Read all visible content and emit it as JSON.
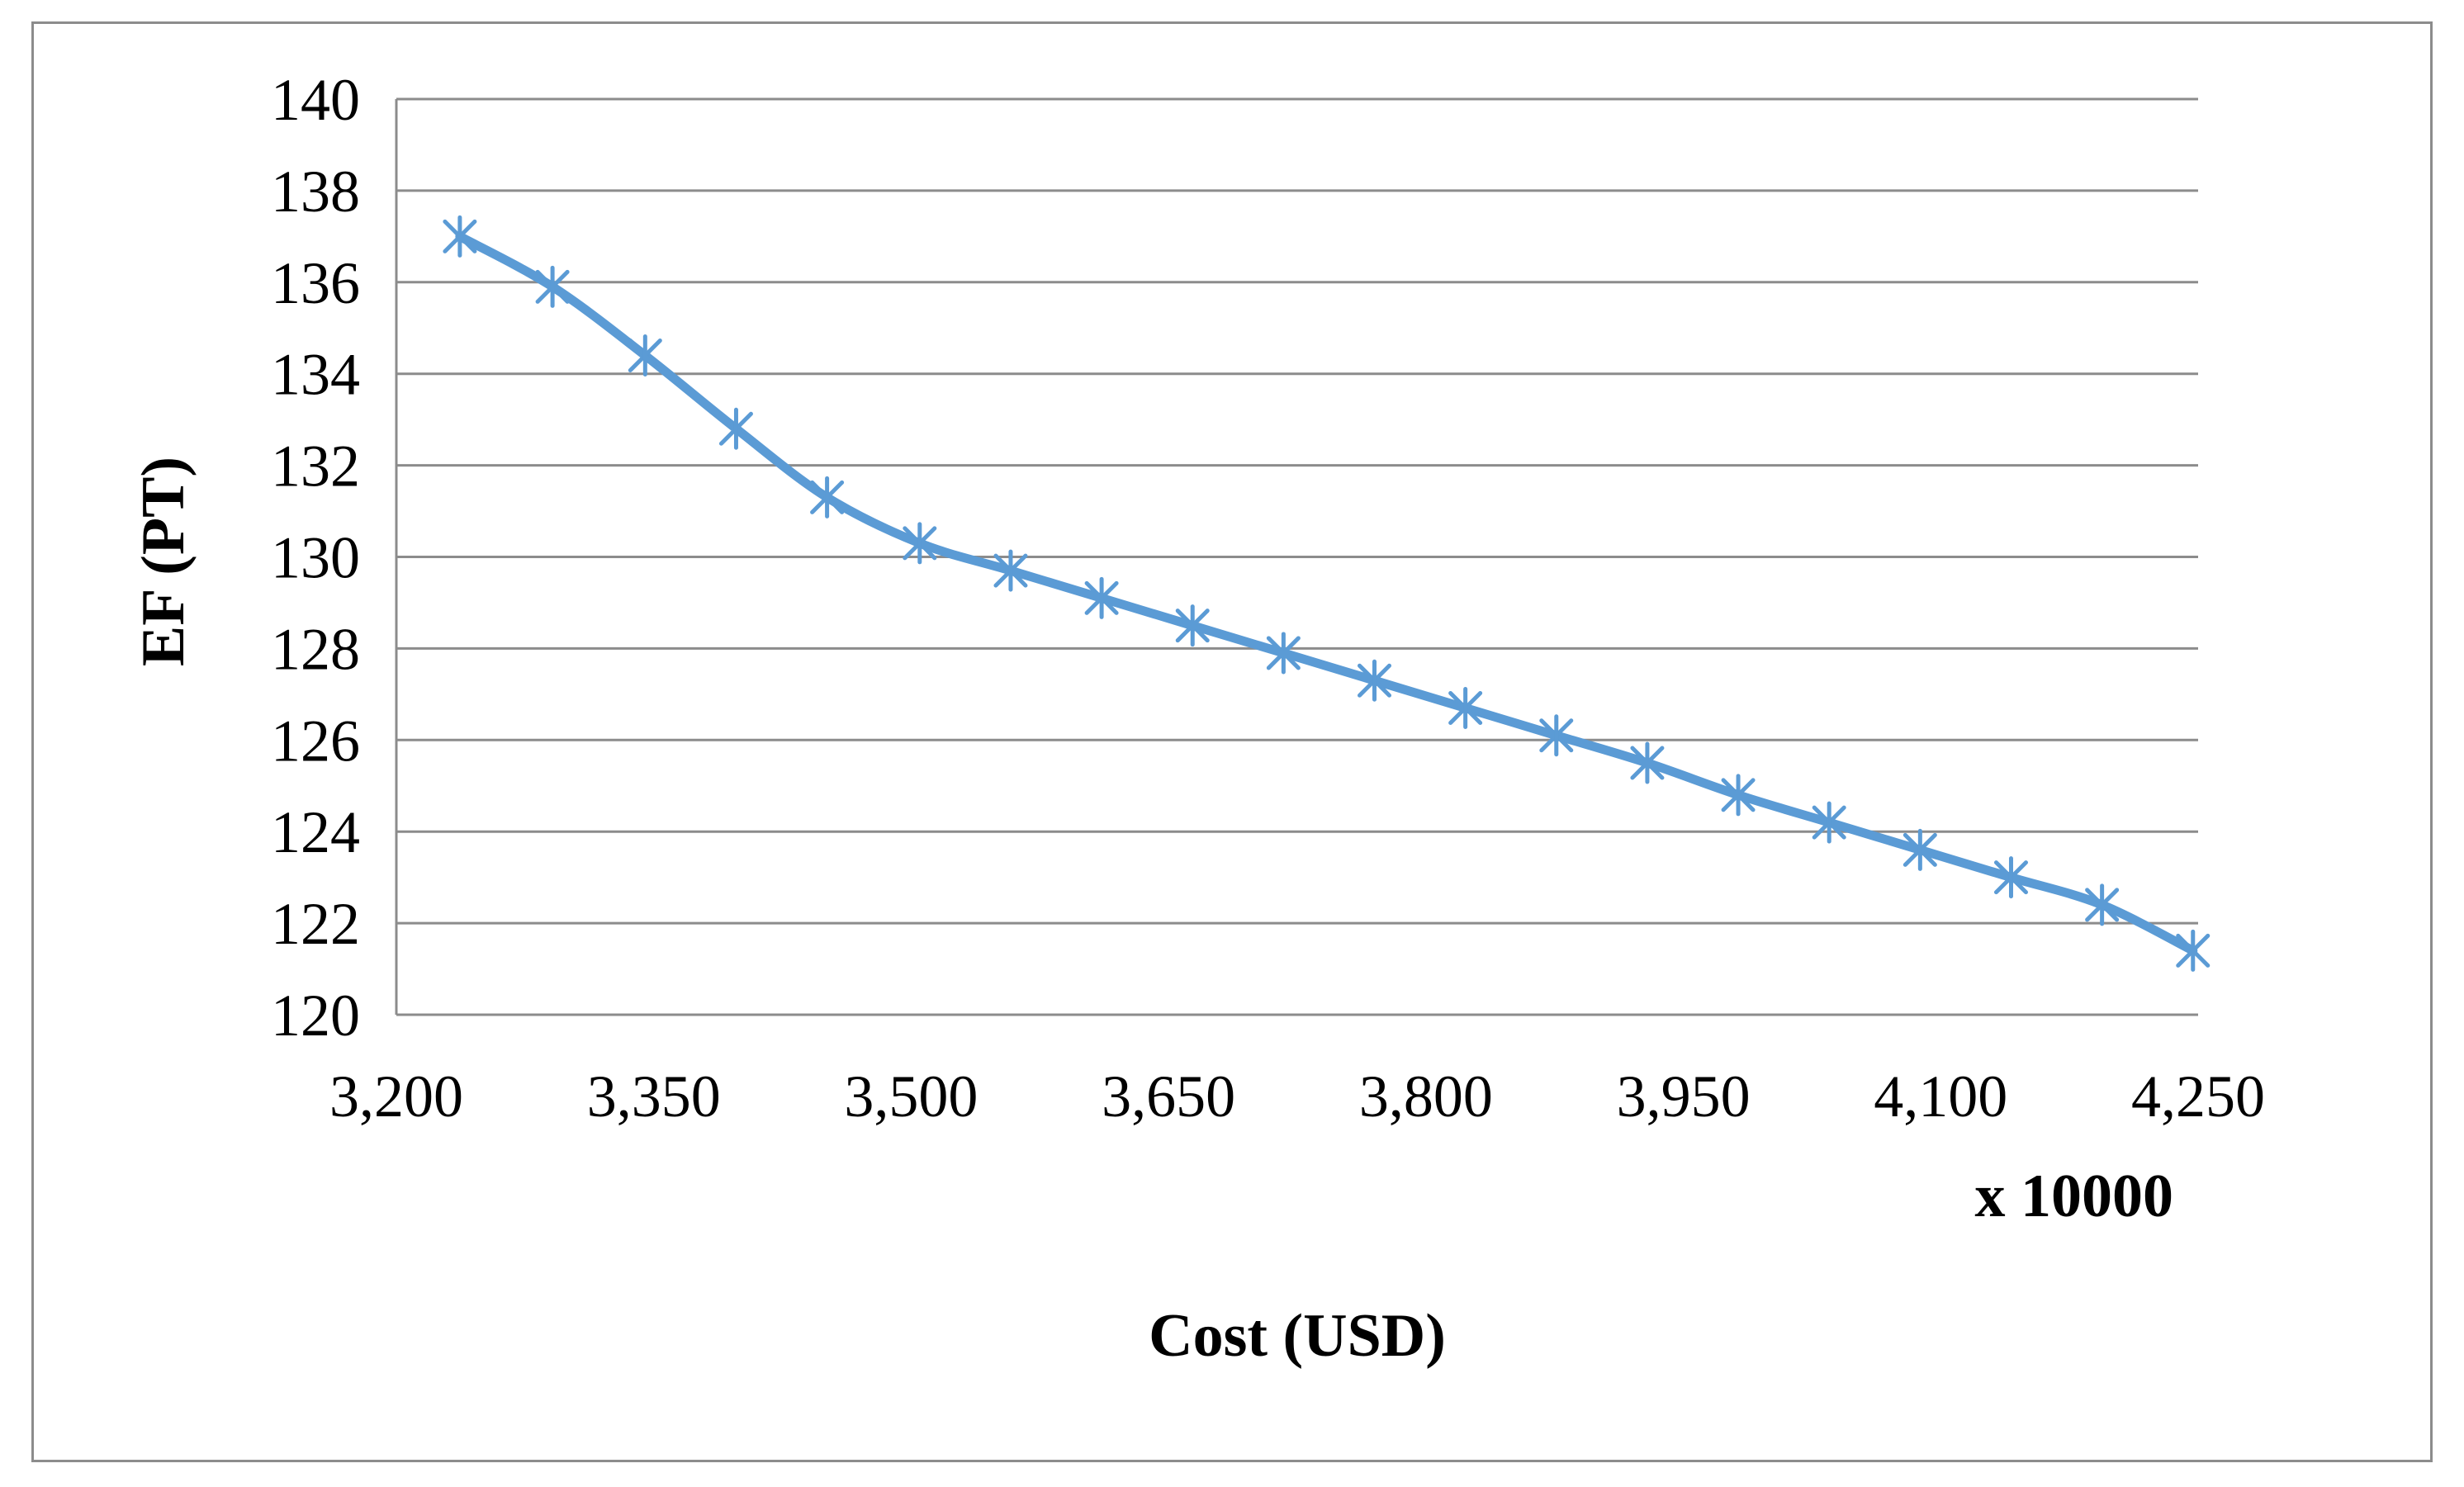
{
  "chart_data": {
    "type": "line",
    "title": "",
    "xlabel": "Cost (USD)",
    "x_multiplier_label": "x 10000",
    "ylabel": "EF (PT)",
    "xlim": [
      3200,
      4250
    ],
    "ylim": [
      120,
      140
    ],
    "x_ticks": [
      3200,
      3350,
      3500,
      3650,
      3800,
      3950,
      4100,
      4250
    ],
    "x_tick_labels": [
      "3,200",
      "3,350",
      "3,500",
      "3,650",
      "3,800",
      "3,950",
      "4,100",
      "4,250"
    ],
    "y_ticks": [
      120,
      122,
      124,
      126,
      128,
      130,
      132,
      134,
      136,
      138,
      140
    ],
    "y_tick_labels": [
      "120",
      "122",
      "124",
      "126",
      "128",
      "130",
      "132",
      "134",
      "136",
      "138",
      "140"
    ],
    "grid": true,
    "legend": "none",
    "marker": "asterisk",
    "series": [
      {
        "color": "#5b9bd5",
        "x": [
          3237,
          3291,
          3345,
          3398,
          3451,
          3505,
          3558,
          3611,
          3664,
          3717,
          3770,
          3823,
          3876,
          3929,
          3982,
          4035,
          4088,
          4141,
          4194,
          4247
        ],
        "y": [
          137.0,
          135.9,
          134.4,
          132.8,
          131.3,
          130.3,
          129.7,
          129.1,
          128.5,
          127.9,
          127.3,
          126.7,
          126.1,
          125.5,
          124.8,
          124.2,
          123.6,
          123.0,
          122.4,
          121.4
        ]
      }
    ]
  }
}
